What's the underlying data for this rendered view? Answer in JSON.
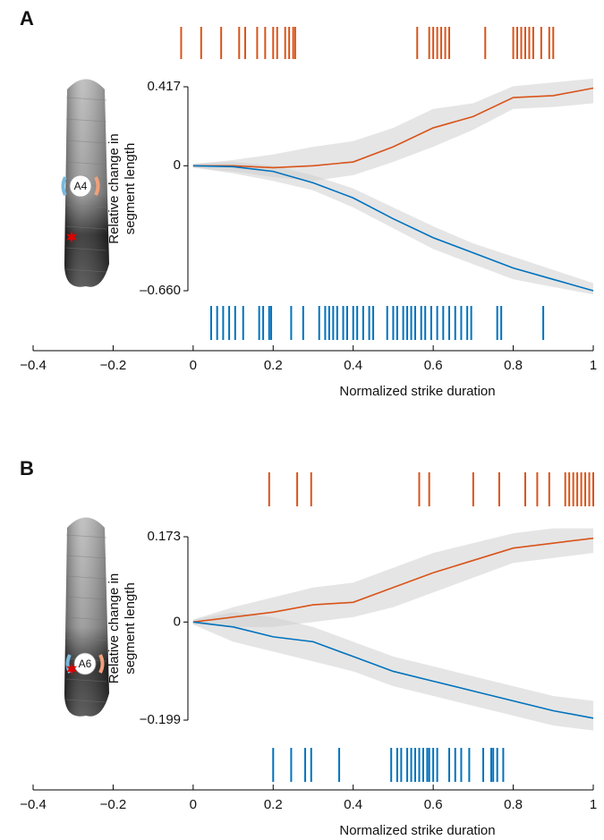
{
  "chart_data": [
    {
      "type": "line",
      "panel_label": "A",
      "annotation": "A4",
      "xlabel": "Normalized strike duration",
      "ylabel": [
        "Relative change in",
        "segment length"
      ],
      "xlim": [
        -0.4,
        1
      ],
      "xticks": [
        {
          "value": -0.4,
          "label": "−0.4"
        },
        {
          "value": -0.2,
          "label": "−0.2"
        },
        0,
        0.2,
        0.4,
        0.6,
        0.8,
        1
      ],
      "ylim": [
        -0.66,
        0.417
      ],
      "yticks": [
        {
          "value": -0.66,
          "label": "–0.660"
        },
        0,
        0.417
      ],
      "x": [
        0,
        0.1,
        0.2,
        0.3,
        0.4,
        0.5,
        0.6,
        0.7,
        0.8,
        0.9,
        1
      ],
      "series": [
        {
          "color": "#d95319",
          "values": [
            0,
            0,
            -0.01,
            0,
            0.02,
            0.1,
            0.2,
            0.26,
            0.36,
            0.37,
            0.41
          ],
          "upper": [
            0.01,
            0.03,
            0.06,
            0.1,
            0.13,
            0.2,
            0.3,
            0.33,
            0.42,
            0.44,
            0.46
          ],
          "lower": [
            -0.01,
            -0.03,
            -0.06,
            -0.08,
            -0.05,
            0.02,
            0.1,
            0.19,
            0.3,
            0.31,
            0.33
          ]
        },
        {
          "color": "#0072bd",
          "values": [
            0,
            -0.005,
            -0.03,
            -0.09,
            -0.17,
            -0.28,
            -0.38,
            -0.46,
            -0.54,
            -0.6,
            -0.66
          ],
          "upper": [
            0.01,
            0.02,
            0,
            -0.05,
            -0.12,
            -0.22,
            -0.32,
            -0.41,
            -0.48,
            -0.55,
            -0.62
          ],
          "lower": [
            -0.01,
            -0.04,
            -0.08,
            -0.13,
            -0.22,
            -0.33,
            -0.44,
            -0.52,
            -0.6,
            -0.64,
            -0.68
          ]
        }
      ],
      "rasters": [
        {
          "color": "#d95319",
          "x": [
            -0.03,
            0.02,
            0.07,
            0.115,
            0.13,
            0.16,
            0.18,
            0.2,
            0.21,
            0.23,
            0.24,
            0.25,
            0.255,
            0.56,
            0.59,
            0.6,
            0.61,
            0.62,
            0.63,
            0.64,
            0.73,
            0.8,
            0.81,
            0.82,
            0.83,
            0.84,
            0.85,
            0.87,
            0.89,
            0.9
          ]
        },
        {
          "color": "#0072bd",
          "x": [
            0.045,
            0.06,
            0.075,
            0.09,
            0.105,
            0.125,
            0.165,
            0.175,
            0.19,
            0.195,
            0.245,
            0.275,
            0.315,
            0.33,
            0.34,
            0.35,
            0.36,
            0.375,
            0.385,
            0.4,
            0.41,
            0.425,
            0.44,
            0.45,
            0.485,
            0.5,
            0.51,
            0.525,
            0.535,
            0.545,
            0.555,
            0.57,
            0.58,
            0.595,
            0.61,
            0.625,
            0.64,
            0.655,
            0.67,
            0.685,
            0.695,
            0.76,
            0.77,
            0.875
          ]
        }
      ]
    },
    {
      "type": "line",
      "panel_label": "B",
      "annotation": "A6",
      "xlabel": "Normalized strike duration",
      "ylabel": [
        "Relative change in",
        "segment length"
      ],
      "xlim": [
        -0.4,
        1
      ],
      "xticks": [
        {
          "value": -0.4,
          "label": "−0.4"
        },
        {
          "value": -0.2,
          "label": "−0.2"
        },
        0,
        0.2,
        0.4,
        0.6,
        0.8,
        1
      ],
      "ylim": [
        -0.199,
        0.173
      ],
      "yticks": [
        {
          "value": -0.199,
          "label": "−0.199"
        },
        0,
        0.173
      ],
      "x": [
        0,
        0.1,
        0.2,
        0.3,
        0.4,
        0.5,
        0.6,
        0.7,
        0.8,
        0.9,
        1
      ],
      "series": [
        {
          "color": "#d95319",
          "values": [
            0,
            0.01,
            0.02,
            0.035,
            0.04,
            0.07,
            0.1,
            0.125,
            0.15,
            0.16,
            0.17
          ],
          "upper": [
            0.005,
            0.03,
            0.05,
            0.07,
            0.08,
            0.11,
            0.14,
            0.16,
            0.18,
            0.19,
            0.19
          ],
          "lower": [
            -0.005,
            -0.01,
            -0.01,
            0,
            0.01,
            0.03,
            0.06,
            0.09,
            0.12,
            0.13,
            0.14
          ]
        },
        {
          "color": "#0072bd",
          "values": [
            0,
            -0.01,
            -0.03,
            -0.04,
            -0.07,
            -0.1,
            -0.12,
            -0.14,
            -0.16,
            -0.18,
            -0.195
          ],
          "upper": [
            0.005,
            0.02,
            0.01,
            -0.01,
            -0.04,
            -0.07,
            -0.09,
            -0.11,
            -0.13,
            -0.15,
            -0.16
          ],
          "lower": [
            -0.005,
            -0.04,
            -0.06,
            -0.08,
            -0.1,
            -0.13,
            -0.15,
            -0.17,
            -0.19,
            -0.21,
            -0.22
          ]
        }
      ],
      "rasters": [
        {
          "color": "#d95319",
          "x": [
            0.19,
            0.26,
            0.295,
            0.565,
            0.59,
            0.7,
            0.765,
            0.83,
            0.86,
            0.89,
            0.93,
            0.94,
            0.95,
            0.96,
            0.97,
            0.98,
            0.99,
            1
          ]
        },
        {
          "color": "#0072bd",
          "x": [
            0.2,
            0.245,
            0.28,
            0.295,
            0.365,
            0.495,
            0.51,
            0.52,
            0.535,
            0.545,
            0.555,
            0.565,
            0.575,
            0.585,
            0.59,
            0.6,
            0.61,
            0.64,
            0.655,
            0.67,
            0.69,
            0.725,
            0.745,
            0.75,
            0.76,
            0.775
          ]
        }
      ]
    }
  ]
}
